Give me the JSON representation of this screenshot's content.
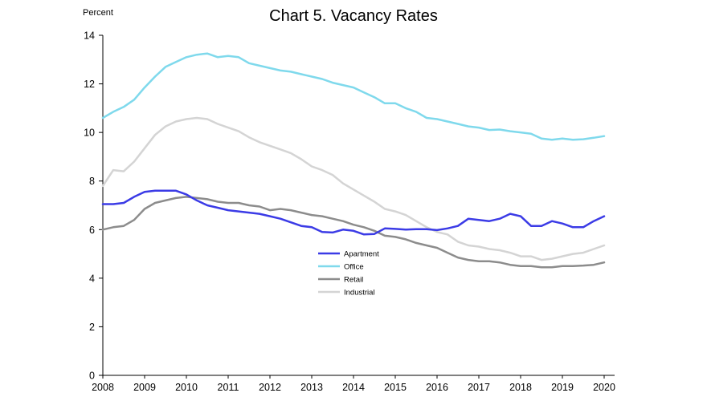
{
  "chart_data": {
    "type": "line",
    "title": "Chart 5. Vacancy Rates",
    "unit_label": "Percent",
    "xlabel": "",
    "ylabel": "",
    "ylim": [
      0,
      14
    ],
    "xlim": [
      2008,
      2020.25
    ],
    "y_ticks": [
      "0",
      "2",
      "4",
      "6",
      "8",
      "10",
      "12",
      "14"
    ],
    "x_ticks": [
      "2008",
      "2009",
      "2010",
      "2011",
      "2012",
      "2013",
      "2014",
      "2015",
      "2016",
      "2017",
      "2018",
      "2019",
      "2020"
    ],
    "grid": false,
    "legend_position": "center",
    "x": [
      2008.0,
      2008.25,
      2008.5,
      2008.75,
      2009.0,
      2009.25,
      2009.5,
      2009.75,
      2010.0,
      2010.25,
      2010.5,
      2010.75,
      2011.0,
      2011.25,
      2011.5,
      2011.75,
      2012.0,
      2012.25,
      2012.5,
      2012.75,
      2013.0,
      2013.25,
      2013.5,
      2013.75,
      2014.0,
      2014.25,
      2014.5,
      2014.75,
      2015.0,
      2015.25,
      2015.5,
      2015.75,
      2016.0,
      2016.25,
      2016.5,
      2016.75,
      2017.0,
      2017.25,
      2017.5,
      2017.75,
      2018.0,
      2018.25,
      2018.5,
      2018.75,
      2019.0,
      2019.25,
      2019.5,
      2019.75,
      2020.0
    ],
    "series": [
      {
        "name": "Apartment",
        "color": "#3b3be6",
        "values": [
          7.05,
          7.05,
          7.1,
          7.35,
          7.55,
          7.6,
          7.6,
          7.6,
          7.45,
          7.2,
          7.0,
          6.9,
          6.8,
          6.75,
          6.7,
          6.65,
          6.55,
          6.45,
          6.3,
          6.15,
          6.1,
          5.9,
          5.88,
          6.0,
          5.95,
          5.8,
          5.82,
          6.05,
          6.03,
          6.0,
          6.02,
          6.02,
          5.98,
          6.05,
          6.15,
          6.45,
          6.4,
          6.35,
          6.45,
          6.65,
          6.55,
          6.15,
          6.15,
          6.35,
          6.25,
          6.1,
          6.1,
          6.35,
          6.55
        ]
      },
      {
        "name": "Office",
        "color": "#7fd9ec",
        "values": [
          10.6,
          10.85,
          11.05,
          11.35,
          11.85,
          12.3,
          12.7,
          12.9,
          13.1,
          13.2,
          13.25,
          13.1,
          13.15,
          13.1,
          12.85,
          12.75,
          12.65,
          12.55,
          12.5,
          12.4,
          12.3,
          12.2,
          12.05,
          11.95,
          11.85,
          11.65,
          11.45,
          11.2,
          11.2,
          11.0,
          10.85,
          10.6,
          10.55,
          10.45,
          10.35,
          10.25,
          10.2,
          10.1,
          10.12,
          10.05,
          10.0,
          9.95,
          9.75,
          9.7,
          9.75,
          9.7,
          9.72,
          9.78,
          9.85
        ]
      },
      {
        "name": "Retail",
        "color": "#8c8c8c",
        "values": [
          6.0,
          6.1,
          6.15,
          6.4,
          6.85,
          7.1,
          7.2,
          7.3,
          7.35,
          7.3,
          7.25,
          7.15,
          7.1,
          7.1,
          7.0,
          6.95,
          6.8,
          6.85,
          6.8,
          6.7,
          6.6,
          6.55,
          6.45,
          6.35,
          6.2,
          6.1,
          5.95,
          5.75,
          5.7,
          5.6,
          5.45,
          5.35,
          5.25,
          5.05,
          4.85,
          4.75,
          4.7,
          4.7,
          4.65,
          4.55,
          4.5,
          4.5,
          4.45,
          4.45,
          4.5,
          4.5,
          4.52,
          4.55,
          4.65
        ]
      },
      {
        "name": "Industrial",
        "color": "#d4d4d4",
        "values": [
          7.8,
          8.45,
          8.4,
          8.8,
          9.35,
          9.9,
          10.25,
          10.45,
          10.55,
          10.6,
          10.55,
          10.35,
          10.2,
          10.05,
          9.8,
          9.6,
          9.45,
          9.3,
          9.15,
          8.9,
          8.6,
          8.45,
          8.25,
          7.9,
          7.65,
          7.4,
          7.15,
          6.85,
          6.75,
          6.6,
          6.35,
          6.1,
          5.9,
          5.8,
          5.5,
          5.35,
          5.3,
          5.2,
          5.15,
          5.05,
          4.9,
          4.9,
          4.75,
          4.8,
          4.9,
          5.0,
          5.05,
          5.2,
          5.35
        ]
      }
    ]
  }
}
